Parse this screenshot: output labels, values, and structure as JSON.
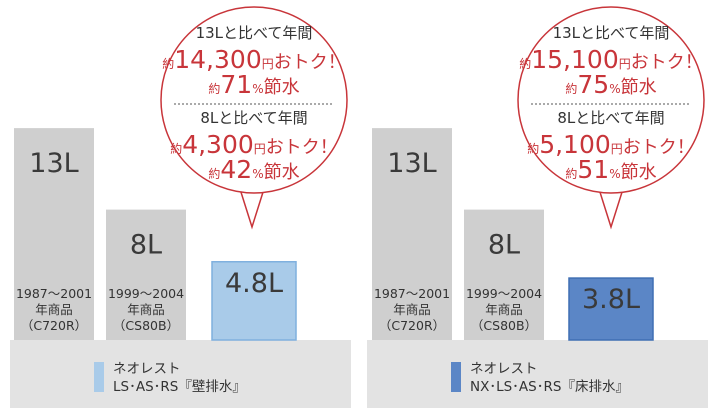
{
  "chart_data": [
    {
      "type": "bar",
      "unit": "L",
      "categories": [
        "1987〜2001年商品（C720R）",
        "1999〜2004年商品（CS80B）",
        "ネオレスト LS・AS・RS『壁排水』"
      ],
      "values": [
        13,
        8,
        4.8
      ],
      "bar_labels": [
        "13L",
        "8L",
        "4.8L"
      ],
      "product_labels": [
        [
          "1987〜2001",
          "年商品",
          "（C720R）"
        ],
        [
          "1999〜2004",
          "年商品",
          "（CS80B）"
        ],
        null
      ],
      "bar_colors": [
        "#cfcfcf",
        "#cfcfcf",
        "#a9cbe9"
      ],
      "legend": {
        "color": "#a9cbe9",
        "lines": [
          "ネオレスト",
          "LS･AS･RS『壁排水』"
        ]
      },
      "callout": [
        {
          "header": "13Lと比べて年間",
          "line1": {
            "pre": "約",
            "num": "14,300",
            "unit": "円",
            "suffix": "おトク！"
          },
          "line2": {
            "pre": "約",
            "num": "71",
            "unit": "%",
            "suffix": "節水"
          }
        },
        {
          "header": "8Lと比べて年間",
          "line1": {
            "pre": "約",
            "num": "4,300",
            "unit": "円",
            "suffix": "おトク！"
          },
          "line2": {
            "pre": "約",
            "num": "42",
            "unit": "%",
            "suffix": "節水"
          }
        }
      ]
    },
    {
      "type": "bar",
      "unit": "L",
      "categories": [
        "1987〜2001年商品（C720R）",
        "1999〜2004年商品（CS80B）",
        "ネオレスト NX・LS・AS・RS『床排水』"
      ],
      "values": [
        13,
        8,
        3.8
      ],
      "bar_labels": [
        "13L",
        "8L",
        "3.8L"
      ],
      "product_labels": [
        [
          "1987〜2001",
          "年商品",
          "（C720R）"
        ],
        [
          "1999〜2004",
          "年商品",
          "（CS80B）"
        ],
        null
      ],
      "bar_colors": [
        "#cfcfcf",
        "#cfcfcf",
        "#5b86c6"
      ],
      "legend": {
        "color": "#5b86c6",
        "lines": [
          "ネオレスト",
          "NX･LS･AS･RS『床排水』"
        ]
      },
      "callout": [
        {
          "header": "13Lと比べて年間",
          "line1": {
            "pre": "約",
            "num": "15,100",
            "unit": "円",
            "suffix": "おトク！"
          },
          "line2": {
            "pre": "約",
            "num": "75",
            "unit": "%",
            "suffix": "節水"
          }
        },
        {
          "header": "8Lと比べて年間",
          "line1": {
            "pre": "約",
            "num": "5,100",
            "unit": "円",
            "suffix": "おトク！"
          },
          "line2": {
            "pre": "約",
            "num": "51",
            "unit": "%",
            "suffix": "節水"
          }
        }
      ]
    }
  ],
  "colors": {
    "callout_red": "#c8353a",
    "baseline_gray": "#e3e3e3",
    "bar_gray": "#cfcfcf"
  }
}
